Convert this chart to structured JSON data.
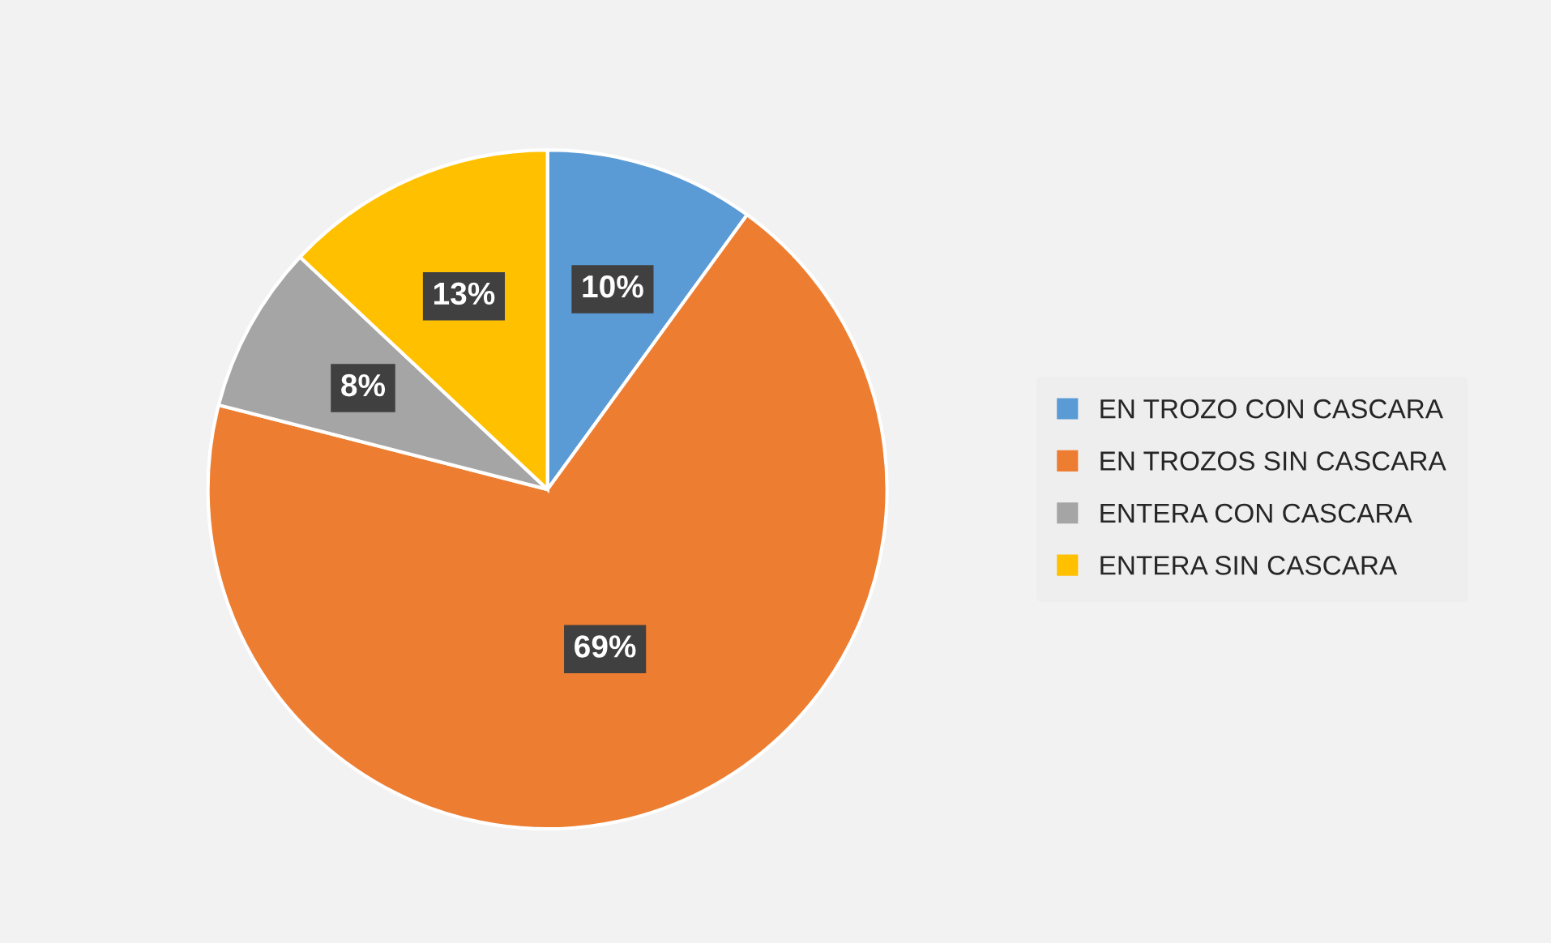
{
  "chart_data": {
    "type": "pie",
    "categories": [
      "EN TROZO CON CASCARA",
      "EN TROZOS SIN CASCARA",
      "ENTERA CON CASCARA",
      "ENTERA SIN CASCARA"
    ],
    "values": [
      10,
      69,
      8,
      13
    ],
    "colors": [
      "#5b9bd5",
      "#ed7d31",
      "#a5a5a5",
      "#ffc000"
    ],
    "value_labels": [
      "10%",
      "69%",
      "8%",
      "13%"
    ],
    "legend": "right"
  }
}
